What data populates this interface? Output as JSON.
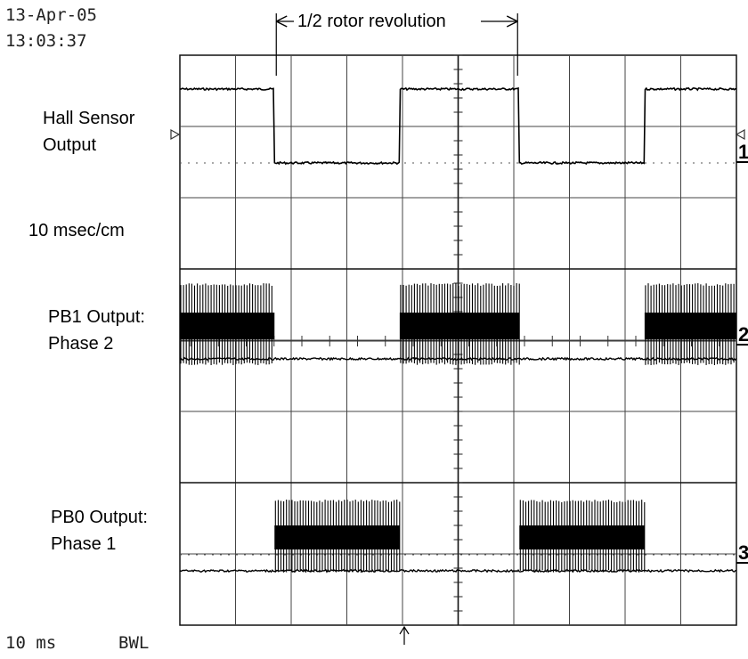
{
  "header": {
    "date": "13-Apr-05",
    "time": "13:03:37"
  },
  "footer": {
    "timebase": "10 ms",
    "bandwidth_limit": "BWL"
  },
  "chart_data": {
    "type": "line",
    "title": "",
    "xlabel": "",
    "ylabel": "",
    "time_per_division": "10 msec/cm",
    "x_unit": "ms",
    "x_range": [
      0,
      100
    ],
    "divisions": {
      "horizontal": 10,
      "vertical": 8
    },
    "grid": true,
    "period_annotation": {
      "label": "1/2 rotor revolution",
      "x_start": 17,
      "x_end": 61
    },
    "trigger_marker_x": 40,
    "channels": [
      {
        "number": "1",
        "name_lines": [
          "Hall Sensor",
          "Output"
        ],
        "kind": "square",
        "low_ms": [
          [
            17,
            39.5
          ],
          [
            61,
            83.5
          ]
        ]
      },
      {
        "number": "2",
        "name_lines": [
          "PB1 Output:",
          "Phase 2"
        ],
        "kind": "pwm",
        "active_ms": [
          [
            0,
            17
          ],
          [
            39.5,
            61
          ],
          [
            83.5,
            100
          ]
        ]
      },
      {
        "number": "3",
        "name_lines": [
          "PB0 Output:",
          "Phase 1"
        ],
        "kind": "pwm",
        "active_ms": [
          [
            17,
            39.5
          ],
          [
            61,
            83.5
          ]
        ]
      }
    ],
    "scale_note": "10 msec/cm"
  }
}
